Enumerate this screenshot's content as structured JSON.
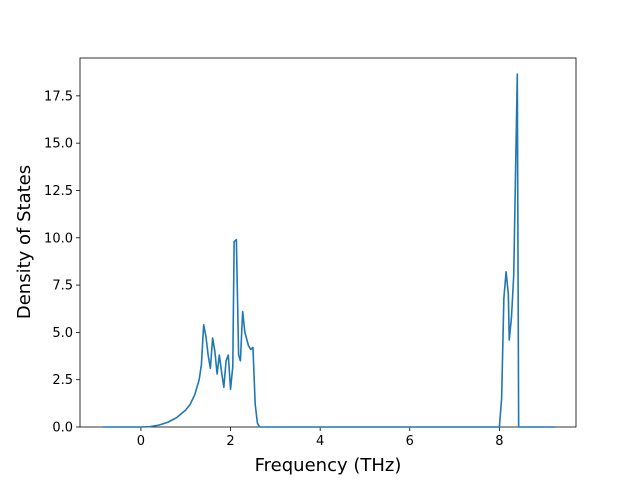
{
  "chart_data": {
    "type": "line",
    "xlabel": "Frequency (THz)",
    "ylabel": "Density of States",
    "x": [
      -0.85,
      0,
      0.2,
      0.4,
      0.6,
      0.8,
      1.0,
      1.1,
      1.2,
      1.3,
      1.35,
      1.4,
      1.45,
      1.5,
      1.55,
      1.6,
      1.65,
      1.7,
      1.75,
      1.8,
      1.85,
      1.9,
      1.95,
      2.0,
      2.05,
      2.08,
      2.13,
      2.18,
      2.22,
      2.27,
      2.32,
      2.4,
      2.45,
      2.5,
      2.55,
      2.6,
      2.65,
      8.0,
      8.05,
      8.1,
      8.15,
      8.2,
      8.22,
      8.27,
      8.32,
      8.4,
      8.43,
      9.25
    ],
    "series": [
      {
        "color": "#1f77b4",
        "values": [
          0,
          0,
          0.02,
          0.1,
          0.25,
          0.5,
          0.9,
          1.2,
          1.7,
          2.5,
          3.3,
          5.4,
          4.8,
          3.8,
          3.1,
          4.7,
          4.0,
          2.8,
          3.8,
          2.9,
          2.1,
          3.5,
          3.8,
          2.0,
          3.2,
          9.8,
          9.9,
          3.8,
          3.5,
          6.1,
          5.0,
          4.3,
          4.1,
          4.2,
          1.2,
          0.2,
          0,
          0,
          1.5,
          6.8,
          8.2,
          7.0,
          4.6,
          5.8,
          8.0,
          18.65,
          0,
          0
        ]
      }
    ],
    "xlim": [
      -1.36,
      9.71
    ],
    "ylim": [
      0,
      19.5
    ],
    "xticks": [
      0,
      2,
      4,
      6,
      8
    ],
    "yticks": [
      {
        "value": 0,
        "label": "0.0"
      },
      {
        "value": 2.5,
        "label": "2.5"
      },
      {
        "value": 5,
        "label": "5.0"
      },
      {
        "value": 7.5,
        "label": "7.5"
      },
      {
        "value": 10,
        "label": "10.0"
      },
      {
        "value": 12.5,
        "label": "12.5"
      },
      {
        "value": 15,
        "label": "15.0"
      },
      {
        "value": 17.5,
        "label": "17.5"
      }
    ]
  }
}
